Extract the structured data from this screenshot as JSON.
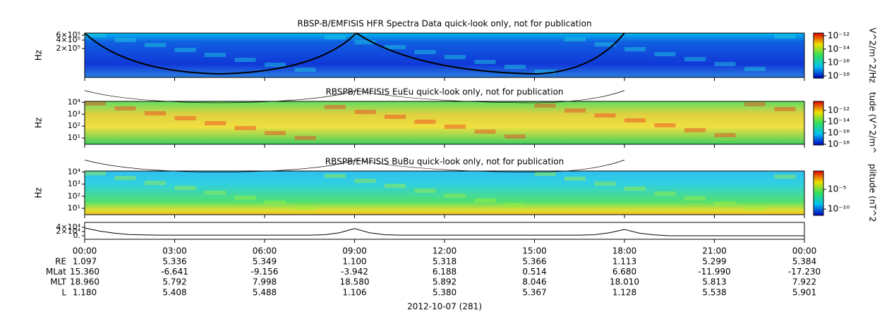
{
  "chart_data": [
    {
      "type": "spectrogram",
      "title": "RBSP-B/EMFISIS  HFR Spectra Data quick-look only, not for publication",
      "ylabel": "Hz",
      "log_y": true,
      "ylim": [
        19000,
        710000
      ],
      "yticks": [
        {
          "value": 200000,
          "label": "2×10⁵"
        },
        {
          "value": 400000,
          "label": "4×10⁵"
        },
        {
          "value": 600000,
          "label": "6×10⁵"
        }
      ],
      "zlabel": "V^2/m^2/Hz",
      "zlim": [
        6e-19,
        2.5e-12
      ],
      "zticks": [
        {
          "value": 1e-12,
          "label": "10⁻¹²"
        },
        {
          "value": 1e-14,
          "label": "10⁻¹⁴"
        },
        {
          "value": 1e-16,
          "label": "10⁻¹⁶"
        },
        {
          "value": 1e-18,
          "label": "10⁻¹⁸"
        }
      ]
    },
    {
      "type": "spectrogram",
      "title": "RBSPB/EMFISIS  EuEu quick-look only, not for publication",
      "ylabel": "Hz",
      "log_y": true,
      "ylim": [
        3,
        12000
      ],
      "yticks": [
        {
          "value": 10,
          "label": "10¹"
        },
        {
          "value": 100,
          "label": "10²"
        },
        {
          "value": 1000,
          "label": "10³"
        },
        {
          "value": 10000,
          "label": "10⁴"
        }
      ],
      "zlabel": "tude (V^2/m^",
      "zlim": [
        1e-18,
        4e-11
      ],
      "zticks": [
        {
          "value": 1e-12,
          "label": "10⁻¹²"
        },
        {
          "value": 1e-14,
          "label": "10⁻¹⁴"
        },
        {
          "value": 1e-16,
          "label": "10⁻¹⁶"
        },
        {
          "value": 1e-18,
          "label": "10⁻¹⁸"
        }
      ]
    },
    {
      "type": "spectrogram",
      "title": "RBSPB/EMFISIS  BuBu quick-look only, not for publication",
      "ylabel": "Hz",
      "log_y": true,
      "ylim": [
        3,
        12000
      ],
      "yticks": [
        {
          "value": 10,
          "label": "10¹"
        },
        {
          "value": 100,
          "label": "10²"
        },
        {
          "value": 1000,
          "label": "10³"
        },
        {
          "value": 10000,
          "label": "10⁴"
        }
      ],
      "zlabel": "plitude (nT^2",
      "zlim": [
        4e-12,
        0.44
      ],
      "zticks": [
        {
          "value": 1e-05,
          "label": "10⁻⁵"
        },
        {
          "value": 1e-10,
          "label": "10⁻¹⁰"
        }
      ]
    },
    {
      "type": "line",
      "color": "#000000",
      "ylim": [
        -16700,
        63300
      ],
      "yticks": [
        {
          "value": 0,
          "label": "0."
        },
        {
          "value": 20000,
          "label": "2×10⁴"
        },
        {
          "value": 40000,
          "label": "4×10⁴"
        }
      ],
      "x": [
        "00:00",
        "00:30",
        "01:00",
        "01:30",
        "02:00",
        "02:30",
        "03:00",
        "03:30",
        "04:00",
        "04:30",
        "05:00",
        "05:30",
        "06:00",
        "06:30",
        "07:00",
        "07:30",
        "08:00",
        "08:30",
        "09:00",
        "09:30",
        "10:00",
        "10:30",
        "11:00",
        "11:30",
        "12:00",
        "12:30",
        "13:00",
        "13:30",
        "14:00",
        "14:30",
        "15:00",
        "15:30",
        "16:00",
        "16:30",
        "17:00",
        "17:30",
        "18:00",
        "18:30",
        "19:00",
        "19:30",
        "20:00",
        "20:30",
        "21:00",
        "21:30",
        "22:00",
        "22:30",
        "23:00",
        "23:30",
        "00:00"
      ],
      "values": [
        37000,
        22000,
        12000,
        6000,
        4000,
        3000,
        3000,
        3000,
        3000,
        3000,
        3000,
        3000,
        3000,
        3000,
        3000,
        3000,
        5000,
        14000,
        34000,
        14000,
        5000,
        3000,
        3000,
        3000,
        3000,
        3000,
        3000,
        3000,
        3000,
        3000,
        3000,
        3000,
        3000,
        3000,
        5000,
        14000,
        30000,
        12000,
        4000,
        0,
        0,
        0,
        0,
        0,
        0,
        0,
        0,
        0,
        0
      ],
      "xticks": [
        "00:00",
        "03:00",
        "06:00",
        "09:00",
        "12:00",
        "15:00",
        "18:00",
        "21:00",
        "00:00"
      ],
      "xlabel": "2012-10-07 (281)"
    }
  ],
  "ephemeris": {
    "rows": [
      {
        "label": "RE",
        "values": [
          "1.097",
          "5.336",
          "5.349",
          "1.100",
          "5.318",
          "5.366",
          "1.113",
          "5.299",
          "5.384"
        ]
      },
      {
        "label": "MLat",
        "values": [
          "15.360",
          "-6.641",
          "-9.156",
          "-3.942",
          "6.188",
          "0.514",
          "6.680",
          "-11.990",
          "-17.230"
        ]
      },
      {
        "label": "MLT",
        "values": [
          "18.960",
          "5.792",
          "7.998",
          "18.580",
          "5.892",
          "8.046",
          "18.010",
          "5.813",
          "7.922"
        ]
      },
      {
        "label": "L",
        "values": [
          "1.180",
          "5.408",
          "5.488",
          "1.106",
          "5.380",
          "5.367",
          "1.128",
          "5.538",
          "5.901"
        ]
      }
    ]
  }
}
